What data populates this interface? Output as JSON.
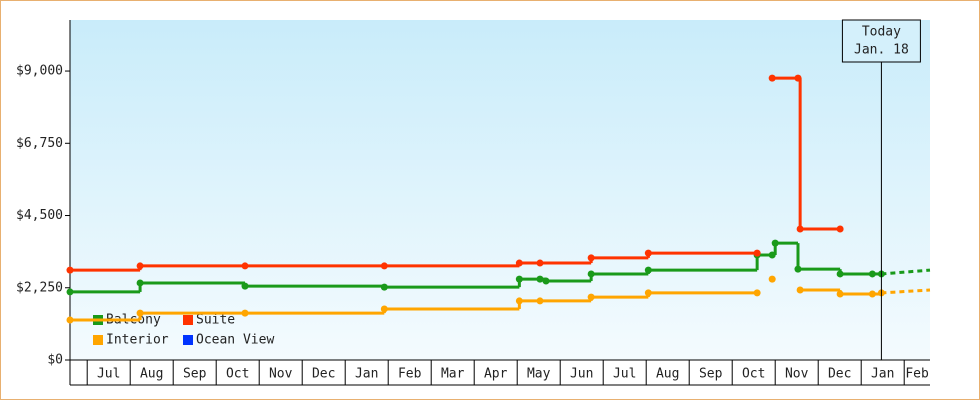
{
  "chart_data": {
    "type": "step-line",
    "ylim": [
      0,
      10590
    ],
    "yticks": [
      {
        "value": 0,
        "label": "$0"
      },
      {
        "value": 2250,
        "label": "$2,250"
      },
      {
        "value": 4500,
        "label": "$4,500"
      },
      {
        "value": 6750,
        "label": "$6,750"
      },
      {
        "value": 9000,
        "label": "$9,000"
      }
    ],
    "xlim": [
      -0.4,
      19.6
    ],
    "xticks": [
      {
        "value": 0,
        "label": "Jul"
      },
      {
        "value": 1,
        "label": "Aug"
      },
      {
        "value": 2,
        "label": "Sep"
      },
      {
        "value": 3,
        "label": "Oct"
      },
      {
        "value": 4,
        "label": "Nov"
      },
      {
        "value": 5,
        "label": "Dec"
      },
      {
        "value": 6,
        "label": "Jan"
      },
      {
        "value": 7,
        "label": "Feb"
      },
      {
        "value": 8,
        "label": "Mar"
      },
      {
        "value": 9,
        "label": "Apr"
      },
      {
        "value": 10,
        "label": "May"
      },
      {
        "value": 11,
        "label": "Jun"
      },
      {
        "value": 12,
        "label": "Jul"
      },
      {
        "value": 13,
        "label": "Aug"
      },
      {
        "value": 14,
        "label": "Sep"
      },
      {
        "value": 15,
        "label": "Oct"
      },
      {
        "value": 16,
        "label": "Nov"
      },
      {
        "value": 17,
        "label": "Dec"
      },
      {
        "value": 18,
        "label": "Jan"
      },
      {
        "value": 19,
        "label": "Feb"
      }
    ],
    "today": {
      "x": 18.47,
      "label": "Today",
      "date": "Jan. 18"
    },
    "series": [
      {
        "name": "Balcony",
        "color": "#1a9a1a",
        "x": [
          -0.4,
          1.23,
          3.67,
          6.91,
          10.05,
          10.53,
          10.67,
          11.72,
          13.05,
          15.58,
          15.93,
          16.0,
          16.53,
          17.51,
          18.26,
          18.47,
          19.6
        ],
        "values": [
          2120,
          2400,
          2300,
          2270,
          2520,
          2520,
          2460,
          2680,
          2800,
          3270,
          3270,
          3640,
          2830,
          2680,
          2680,
          2680,
          2800
        ]
      },
      {
        "name": "Suite",
        "color": "#ff3300",
        "x": [
          -0.4,
          1.23,
          3.67,
          6.91,
          10.05,
          10.53,
          11.72,
          13.05,
          15.58,
          15.77,
          15.93,
          16.53,
          16.58,
          17.51
        ],
        "values": [
          2800,
          2930,
          2930,
          2930,
          3020,
          3020,
          3180,
          3330,
          3330,
          null,
          8780,
          8780,
          4080,
          4080
        ]
      },
      {
        "name": "Interior",
        "color": "#ffa500",
        "x": [
          -0.4,
          1.23,
          3.67,
          6.91,
          10.05,
          10.53,
          11.72,
          13.05,
          15.58,
          15.77,
          15.93,
          16.2,
          16.58,
          17.51,
          18.26,
          18.47,
          19.6
        ],
        "values": [
          1245,
          1460,
          1460,
          1590,
          1840,
          1840,
          1960,
          2090,
          2090,
          null,
          2520,
          null,
          2180,
          2055,
          2055,
          2090,
          2180
        ]
      },
      {
        "name": "Ocean View",
        "color": "#0033ff",
        "x": [],
        "values": []
      }
    ]
  }
}
